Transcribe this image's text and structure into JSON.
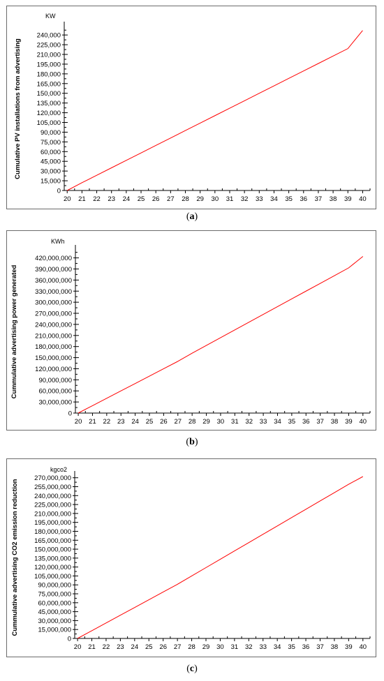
{
  "chart_data": [
    {
      "type": "line",
      "caption_letter": "a",
      "unit": "KW",
      "ylabel": "Cumulative PV installations from advertising",
      "xlabel": "",
      "x": [
        20,
        21,
        22,
        23,
        24,
        25,
        26,
        27,
        28,
        29,
        30,
        31,
        32,
        33,
        34,
        35,
        36,
        37,
        38,
        39,
        40
      ],
      "x_tick_labels": [
        "20",
        "21",
        "22",
        "23",
        "24",
        "25",
        "26",
        "27",
        "28",
        "29",
        "30",
        "31",
        "32",
        "33",
        "34",
        "35",
        "36",
        "37",
        "38",
        "39",
        "40"
      ],
      "xlim": [
        19.8,
        40.5
      ],
      "ylim": [
        0,
        252000
      ],
      "yticks": [
        0,
        15000,
        30000,
        45000,
        60000,
        75000,
        90000,
        105000,
        120000,
        135000,
        150000,
        165000,
        180000,
        195000,
        210000,
        225000,
        240000
      ],
      "ytick_labels": [
        "0",
        "15,000",
        "30,000",
        "45,000",
        "60,000",
        "75,000",
        "90,000",
        "105,000",
        "120,000",
        "135,000",
        "150,000",
        "165,000",
        "180,000",
        "195,000",
        "210,000",
        "225,000",
        "240,000"
      ],
      "series": [
        {
          "color": "#ff0000",
          "values": [
            0,
            12000,
            23500,
            35000,
            46500,
            58000,
            69500,
            81000,
            92500,
            104000,
            115500,
            127000,
            138500,
            150000,
            161500,
            173000,
            184500,
            196000,
            207500,
            219000,
            247000
          ]
        }
      ]
    },
    {
      "type": "line",
      "caption_letter": "b",
      "unit": "KWh",
      "ylabel": "Cummulative advertising power generated",
      "xlabel": "",
      "x": [
        20,
        21,
        22,
        23,
        24,
        25,
        26,
        27,
        28,
        29,
        30,
        31,
        32,
        33,
        34,
        35,
        36,
        37,
        38,
        39,
        40
      ],
      "x_tick_labels": [
        "20",
        "21",
        "22",
        "23",
        "24",
        "25",
        "26",
        "27",
        "28",
        "29",
        "30",
        "31",
        "32",
        "33",
        "34",
        "35",
        "36",
        "37",
        "38",
        "39",
        "40"
      ],
      "xlim": [
        19.8,
        40.5
      ],
      "ylim": [
        0,
        440000000
      ],
      "yticks": [
        0,
        30000000,
        60000000,
        90000000,
        120000000,
        150000000,
        180000000,
        210000000,
        240000000,
        270000000,
        300000000,
        330000000,
        360000000,
        390000000,
        420000000
      ],
      "ytick_labels": [
        "0",
        "30,000,000",
        "60,000,000",
        "90,000,000",
        "120,000,000",
        "150,000,000",
        "180,000,000",
        "210,000,000",
        "240,000,000",
        "270,000,000",
        "300,000,000",
        "330,000,000",
        "360,000,000",
        "390,000,000",
        "420,000,000"
      ],
      "series": [
        {
          "color": "#ff0000",
          "values": [
            0,
            20000000,
            40000000,
            60000000,
            80000000,
            100000000,
            120000000,
            140000000,
            162000000,
            183000000,
            204000000,
            225000000,
            246000000,
            267000000,
            288000000,
            309000000,
            330000000,
            351000000,
            372000000,
            393000000,
            424000000
          ]
        }
      ]
    },
    {
      "type": "line",
      "caption_letter": "c",
      "unit": "kgco2",
      "ylabel": "Cummulative advertising CO2 emission reduction",
      "xlabel": "",
      "x": [
        20,
        21,
        22,
        23,
        24,
        25,
        26,
        27,
        28,
        29,
        30,
        31,
        32,
        33,
        34,
        35,
        36,
        37,
        38,
        39,
        40
      ],
      "x_tick_labels": [
        "20",
        "21",
        "22",
        "23",
        "24",
        "25",
        "26",
        "27",
        "28",
        "29",
        "30",
        "31",
        "32",
        "33",
        "34",
        "35",
        "36",
        "37",
        "38",
        "39",
        "40"
      ],
      "xlim": [
        19.8,
        40.5
      ],
      "ylim": [
        0,
        272000000
      ],
      "yticks": [
        0,
        15000000,
        30000000,
        45000000,
        60000000,
        75000000,
        90000000,
        105000000,
        120000000,
        135000000,
        150000000,
        165000000,
        180000000,
        195000000,
        210000000,
        225000000,
        240000000,
        255000000,
        270000000
      ],
      "ytick_labels": [
        "0",
        "15,000,000",
        "30,000,000",
        "45,000,000",
        "60,000,000",
        "75,000,000",
        "90,000,000",
        "105,000,000",
        "120,000,000",
        "135,000,000",
        "150,000,000",
        "165,000,000",
        "180,000,000",
        "195,000,000",
        "210,000,000",
        "225,000,000",
        "240,000,000",
        "255,000,000",
        "270,000,000"
      ],
      "series": [
        {
          "color": "#ff0000",
          "values": [
            0,
            13000000,
            26000000,
            39000000,
            52000000,
            65000000,
            78000000,
            91000000,
            105000000,
            119000000,
            133000000,
            147000000,
            161000000,
            175000000,
            189000000,
            203000000,
            217000000,
            231000000,
            245000000,
            259000000,
            272000000
          ]
        }
      ]
    }
  ]
}
